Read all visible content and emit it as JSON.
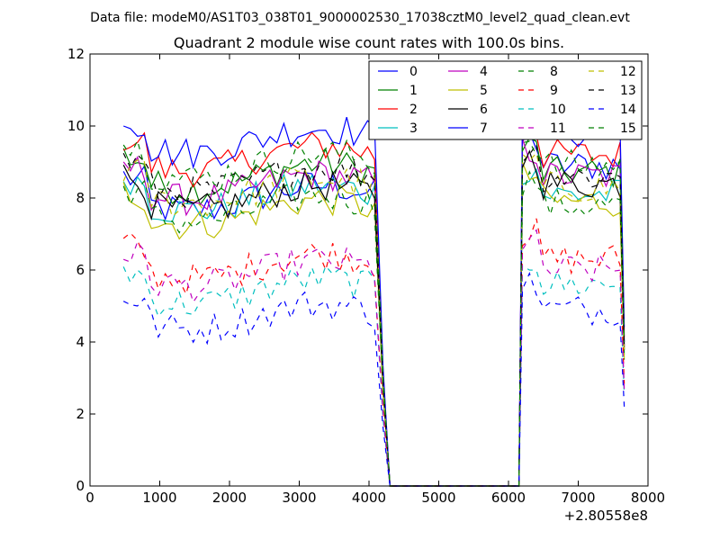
{
  "suptitle": "Data file: modeM0/AS1T03_038T01_9000002530_17038cztM0_level2_quad_clean.evt",
  "chart_data": {
    "type": "line",
    "title": "Quadrant 2 module wise count rates with 100.0s bins.",
    "xlabel": "",
    "ylabel": "",
    "x_offset_label": "+2.80558e8",
    "xlim": [
      0,
      8000
    ],
    "ylim": [
      0,
      12
    ],
    "xticks": [
      "0",
      "1000",
      "2000",
      "3000",
      "4000",
      "5000",
      "6000",
      "7000",
      "8000"
    ],
    "yticks": [
      "0",
      "2",
      "4",
      "6",
      "8",
      "10",
      "12"
    ],
    "grid": false,
    "legend_position": "top-right",
    "legend_columns": 4,
    "gap": {
      "x_start": 4300,
      "x_end": 6150,
      "value": 0
    },
    "segment1_x": {
      "start": 480,
      "step": 100,
      "count": 37
    },
    "segment2_x": {
      "start": 6200,
      "step": 100,
      "count": 15
    },
    "series": [
      {
        "name": "0",
        "color": "#0000ff",
        "dash": "solid",
        "seg1_base": 8.0,
        "seg2_base": 8.9
      },
      {
        "name": "1",
        "color": "#008000",
        "dash": "solid",
        "seg1_base": 8.6,
        "seg2_base": 8.7
      },
      {
        "name": "2",
        "color": "#ff0000",
        "dash": "solid",
        "seg1_base": 9.1,
        "seg2_base": 9.2
      },
      {
        "name": "3",
        "color": "#00bfbf",
        "dash": "solid",
        "seg1_base": 8.0,
        "seg2_base": 8.1
      },
      {
        "name": "4",
        "color": "#bf00bf",
        "dash": "solid",
        "seg1_base": 8.3,
        "seg2_base": 8.6
      },
      {
        "name": "5",
        "color": "#bfbf00",
        "dash": "solid",
        "seg1_base": 7.6,
        "seg2_base": 7.9
      },
      {
        "name": "6",
        "color": "#000000",
        "dash": "solid",
        "seg1_base": 8.0,
        "seg2_base": 8.4
      },
      {
        "name": "7",
        "color": "#0000ff",
        "dash": "solid",
        "seg1_base": 9.6,
        "seg2_base": 9.8
      },
      {
        "name": "8",
        "color": "#008000",
        "dash": "dashed",
        "seg1_base": 7.7,
        "seg2_base": 7.8
      },
      {
        "name": "9",
        "color": "#ff0000",
        "dash": "dashed",
        "seg1_base": 6.1,
        "seg2_base": 6.3
      },
      {
        "name": "10",
        "color": "#00bfbf",
        "dash": "dashed",
        "seg1_base": 5.4,
        "seg2_base": 5.6
      },
      {
        "name": "11",
        "color": "#bf00bf",
        "dash": "dashed",
        "seg1_base": 5.9,
        "seg2_base": 6.0
      },
      {
        "name": "12",
        "color": "#bfbf00",
        "dash": "dashed",
        "seg1_base": 8.2,
        "seg2_base": 8.3
      },
      {
        "name": "13",
        "color": "#000000",
        "dash": "dashed",
        "seg1_base": 8.5,
        "seg2_base": 8.6
      },
      {
        "name": "14",
        "color": "#0000ff",
        "dash": "dashed",
        "seg1_base": 4.7,
        "seg2_base": 4.9
      },
      {
        "name": "15",
        "color": "#008000",
        "dash": "dashed",
        "seg1_base": 8.9,
        "seg2_base": 8.9
      }
    ]
  }
}
